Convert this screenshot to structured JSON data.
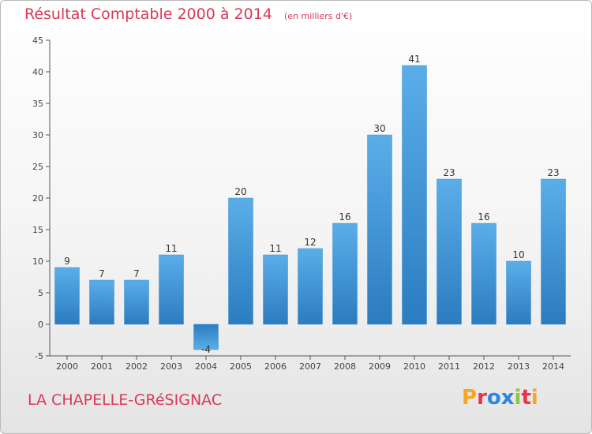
{
  "header": {
    "title": "Résultat Comptable 2000 à 2014",
    "unit": "(en milliers d'€)"
  },
  "footer": {
    "commune": "LA CHAPELLE-GRéSIGNAC",
    "brand": "Proxiti",
    "brand_colors": [
      "#f5a623",
      "#e8334a",
      "#2e86de",
      "#2e86de",
      "#8cc63f",
      "#e8334a",
      "#f5a623"
    ]
  },
  "colors": {
    "title": "#d9385a",
    "bar_light": "#5aaee8",
    "bar_dark": "#2b7cc0",
    "axis": "#555555"
  },
  "chart_data": {
    "type": "bar",
    "title": "Résultat Comptable 2000 à 2014",
    "categories": [
      "2000",
      "2001",
      "2002",
      "2003",
      "2004",
      "2005",
      "2006",
      "2007",
      "2008",
      "2009",
      "2010",
      "2011",
      "2012",
      "2013",
      "2014"
    ],
    "values": [
      9,
      7,
      7,
      11,
      -4,
      20,
      11,
      12,
      16,
      30,
      41,
      23,
      16,
      10,
      23
    ],
    "ylim": [
      -5,
      45
    ],
    "yticks": [
      -5,
      0,
      5,
      10,
      15,
      20,
      25,
      30,
      35,
      40,
      45
    ],
    "grid": false,
    "xlabel": "",
    "ylabel": ""
  }
}
